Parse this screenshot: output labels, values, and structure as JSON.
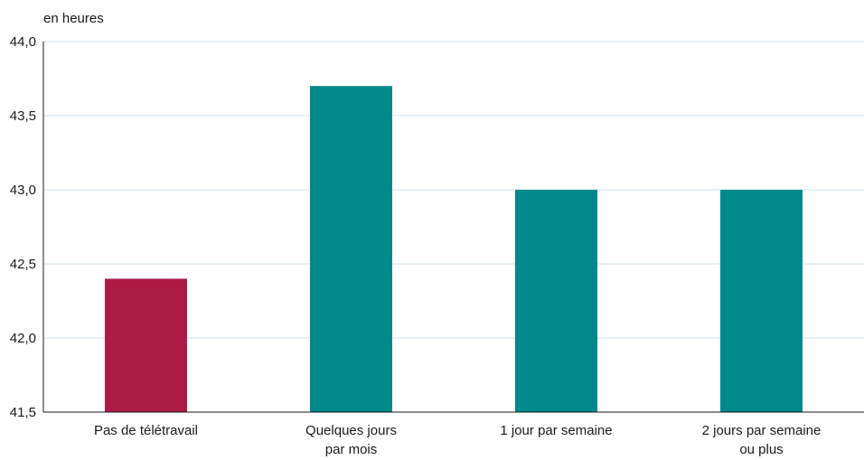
{
  "chart_data": {
    "type": "bar",
    "unit_label": "en heures",
    "categories": [
      [
        "Pas de télétravail"
      ],
      [
        "Quelques jours",
        "par mois"
      ],
      [
        "1 jour par semaine"
      ],
      [
        "2 jours par semaine",
        "ou plus"
      ]
    ],
    "values": [
      42.4,
      43.7,
      43.0,
      43.0
    ],
    "colors": [
      "#ac1a46",
      "#00898a",
      "#00898a",
      "#00898a"
    ],
    "ylim": [
      41.5,
      44.0
    ],
    "yticks": [
      "41,5",
      "42,0",
      "42,5",
      "43,0",
      "43,5",
      "44,0"
    ],
    "ytick_values": [
      41.5,
      42.0,
      42.5,
      43.0,
      43.5,
      44.0
    ],
    "grid": true,
    "grid_color": "#cfe3ec",
    "axis_color": "#1a1a1a"
  }
}
